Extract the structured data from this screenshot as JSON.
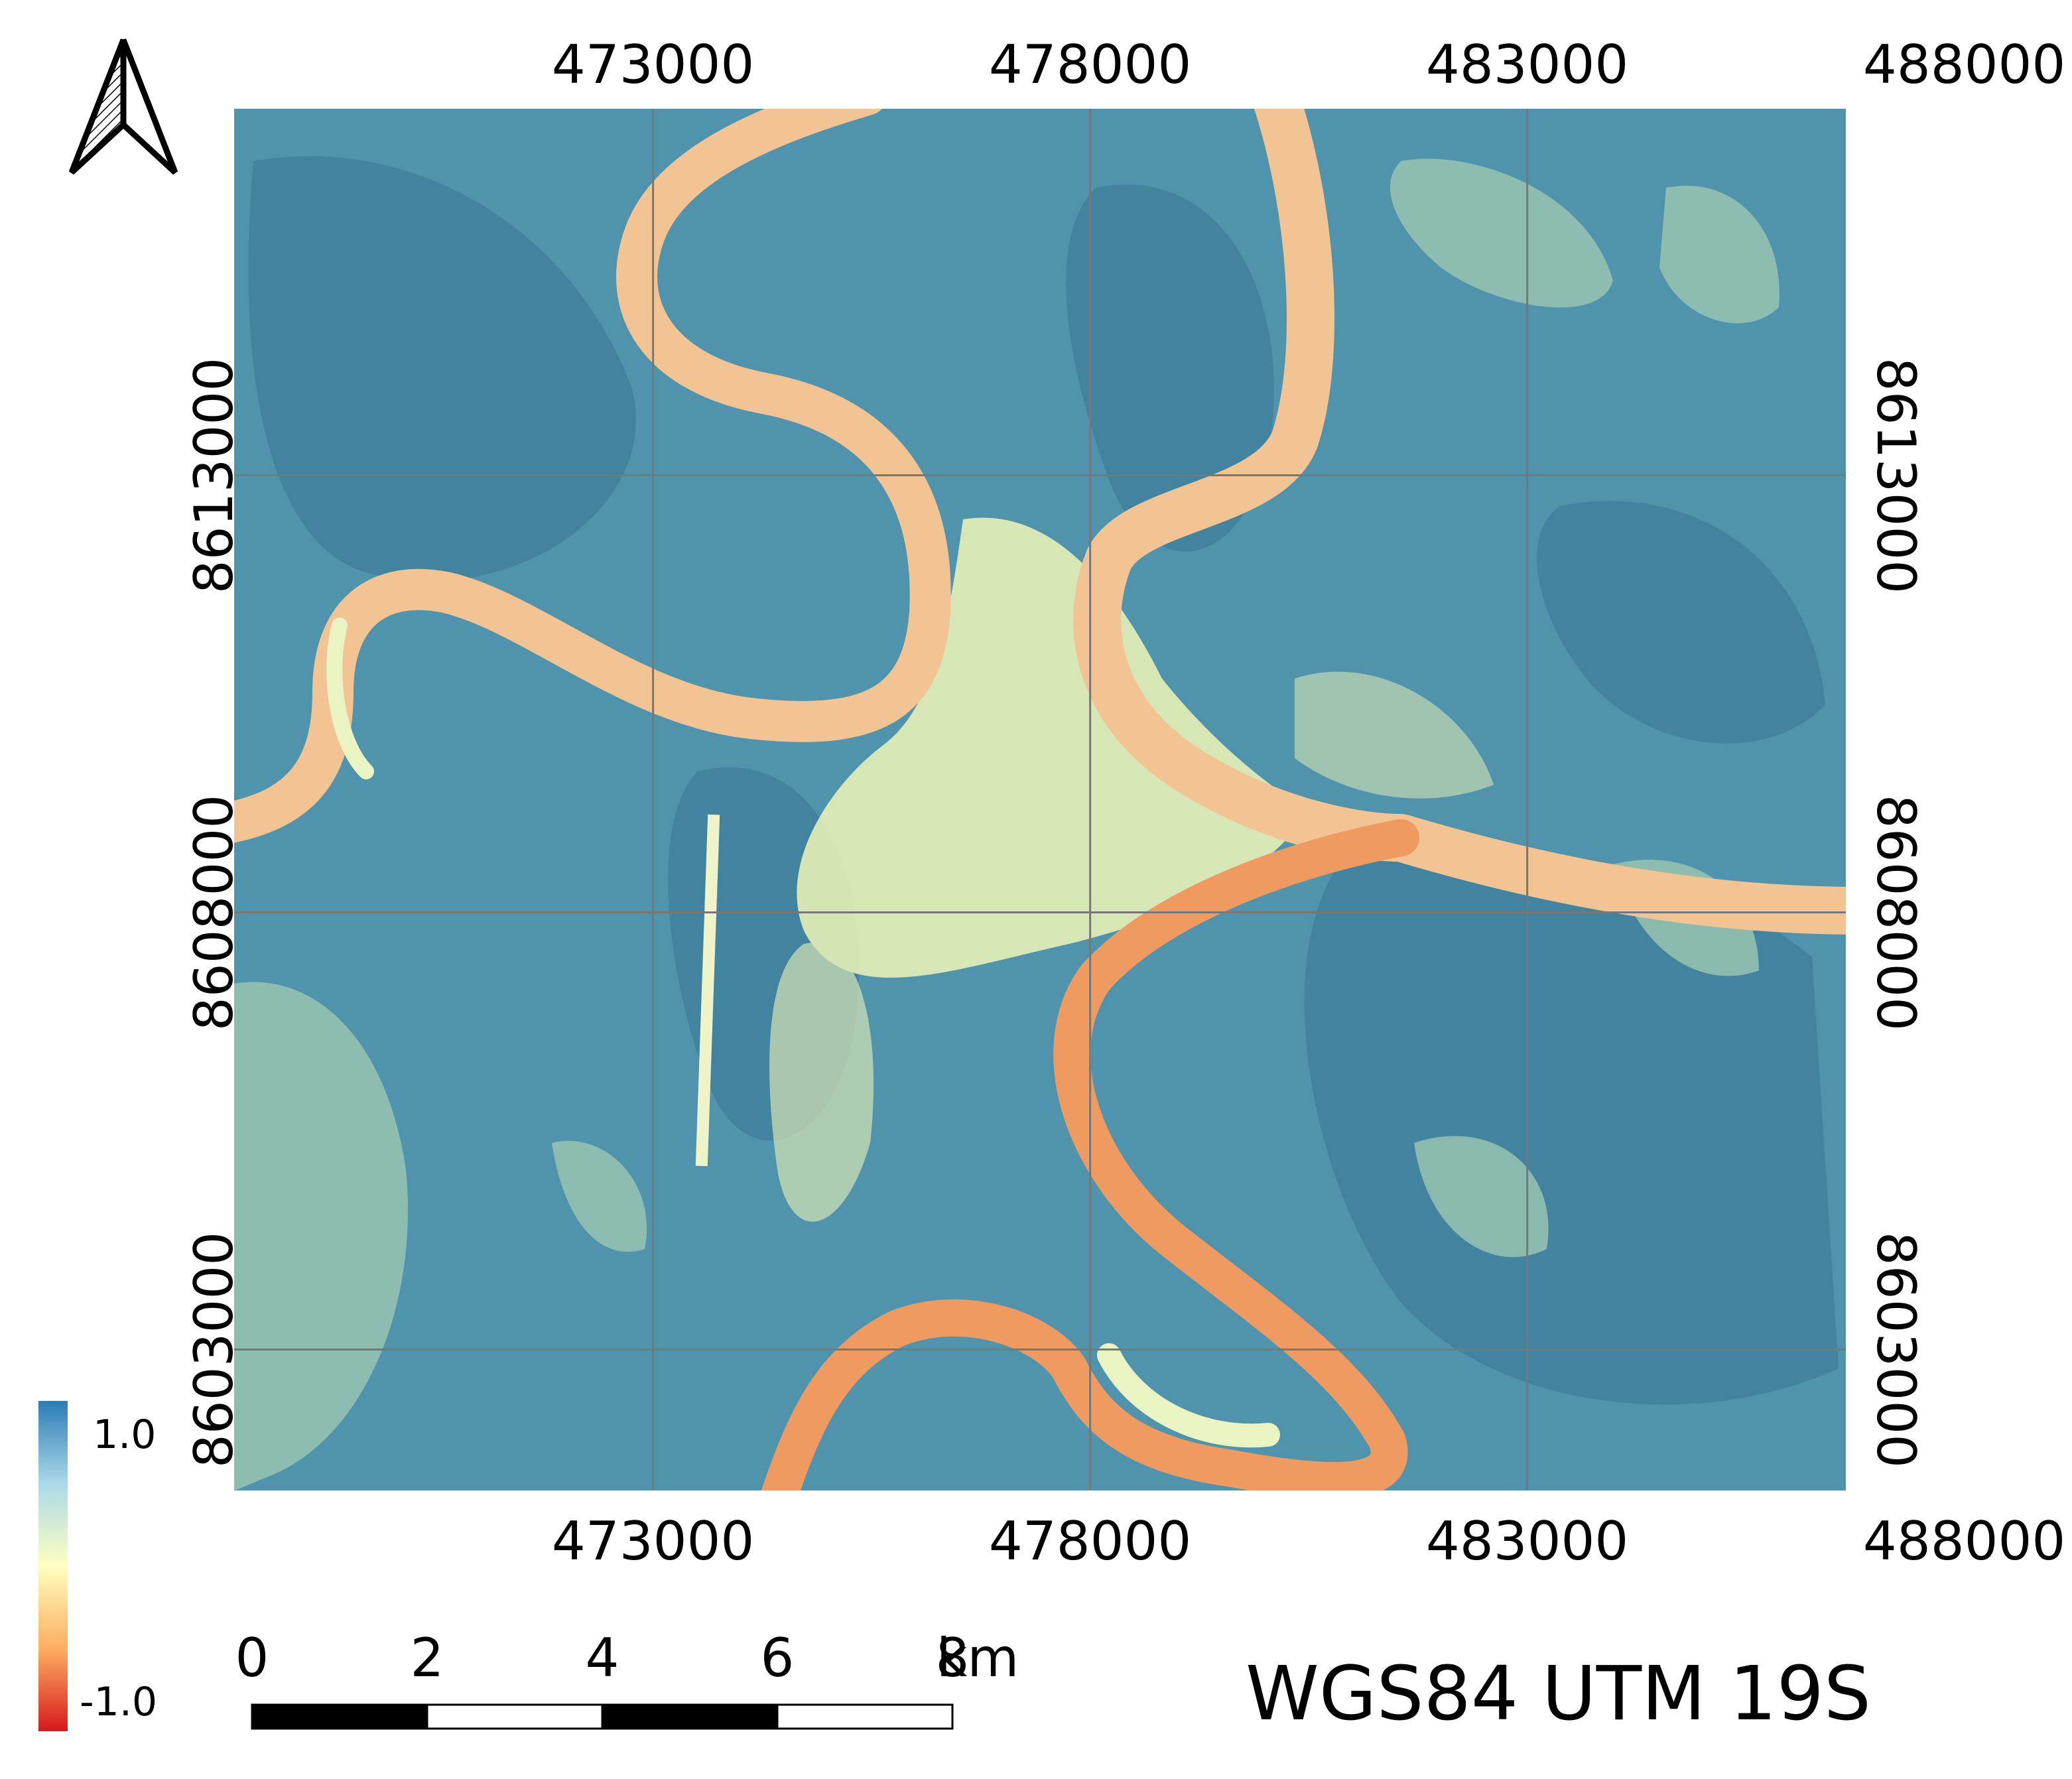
{
  "map": {
    "x_ticks": [
      {
        "label": "473000",
        "easting": 473000
      },
      {
        "label": "478000",
        "easting": 478000
      },
      {
        "label": "483000",
        "easting": 483000
      },
      {
        "label": "488000",
        "easting": 488000
      }
    ],
    "y_ticks": [
      {
        "label": "8613000",
        "northing": 8613000
      },
      {
        "label": "8608000",
        "northing": 8608000
      },
      {
        "label": "8603000",
        "northing": 8603000
      }
    ],
    "grid": true,
    "crs": "WGS84 UTM 19S",
    "north_arrow": "north-arrow-icon"
  },
  "legend": {
    "max_label": "1.0",
    "min_label": "-1.0",
    "colors": [
      "#2c7bb6",
      "#abd9e9",
      "#ffffbf",
      "#fdae61",
      "#d7191c"
    ]
  },
  "scale_bar": {
    "labels": [
      "0",
      "2",
      "4",
      "6",
      "8"
    ],
    "unit": "km",
    "fill_colors": [
      "#000000",
      "#ffffff"
    ]
  },
  "colors": {
    "vegetation": "#4f93ad",
    "vegetation_dark": "#3e7f9c",
    "urban": "#e6f0b5",
    "field": "#9cc8b0",
    "river": "#f5c992",
    "river_low": "#ee9a60"
  }
}
